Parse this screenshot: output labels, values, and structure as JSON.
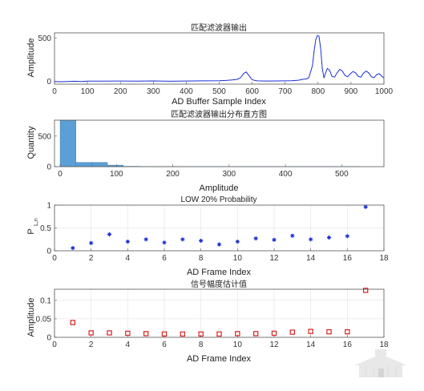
{
  "chart_data": [
    {
      "type": "line",
      "title": "匹配滤波器输出",
      "xlabel": "AD Buffer Sample Index",
      "ylabel": "Amplitude",
      "xlim": [
        0,
        1000
      ],
      "ylim": [
        -30,
        560
      ],
      "xticks": [
        "0",
        "100",
        "200",
        "300",
        "400",
        "500",
        "600",
        "700",
        "800",
        "900",
        "1000"
      ],
      "yticks": [
        "0",
        "500"
      ],
      "grid": false,
      "color": "#1a2ed6",
      "series": [
        {
          "x": [
            0,
            20,
            40,
            60,
            80,
            100,
            150,
            200,
            250,
            300,
            350,
            400,
            450,
            500,
            520,
            540,
            555,
            565,
            575,
            582,
            590,
            600,
            615,
            640,
            680,
            720,
            740,
            755,
            765,
            772,
            778,
            783,
            788,
            793,
            798,
            803,
            808,
            813,
            818,
            823,
            828,
            835,
            842,
            850,
            858,
            866,
            874,
            882,
            890,
            898,
            906,
            914,
            922,
            930,
            938,
            946,
            954,
            962,
            970,
            978,
            986,
            994,
            1000
          ],
          "y": [
            0,
            -2,
            0,
            3,
            0,
            5,
            4,
            6,
            4,
            7,
            3,
            6,
            8,
            10,
            12,
            18,
            25,
            45,
            95,
            110,
            70,
            20,
            8,
            6,
            7,
            10,
            15,
            25,
            30,
            45,
            120,
            180,
            350,
            480,
            530,
            520,
            380,
            150,
            40,
            100,
            150,
            130,
            60,
            50,
            100,
            140,
            120,
            70,
            55,
            90,
            115,
            100,
            60,
            50,
            95,
            120,
            100,
            55,
            45,
            80,
            90,
            60,
            40
          ]
        }
      ]
    },
    {
      "type": "bar",
      "title": "匹配滤波器输出分布直方图",
      "xlabel": "Amplitude",
      "ylabel": "Quantity",
      "xlim": [
        -10,
        575
      ],
      "ylim": [
        0,
        760
      ],
      "xticks": [
        "0",
        "100",
        "200",
        "300",
        "400",
        "500"
      ],
      "yticks": [
        "0",
        "500"
      ],
      "grid": false,
      "bar_color": "#5b9fd6",
      "bins": [
        {
          "x0": 0,
          "x1": 28,
          "value": 760
        },
        {
          "x0": 28,
          "x1": 56,
          "value": 70
        },
        {
          "x0": 56,
          "x1": 84,
          "value": 70
        },
        {
          "x0": 84,
          "x1": 112,
          "value": 25
        },
        {
          "x0": 112,
          "x1": 140,
          "value": 6
        },
        {
          "x0": 140,
          "x1": 168,
          "value": 4
        },
        {
          "x0": 168,
          "x1": 196,
          "value": 2
        },
        {
          "x0": 196,
          "x1": 224,
          "value": 2
        },
        {
          "x0": 224,
          "x1": 252,
          "value": 1
        },
        {
          "x0": 252,
          "x1": 280,
          "value": 1
        },
        {
          "x0": 280,
          "x1": 308,
          "value": 1
        },
        {
          "x0": 308,
          "x1": 336,
          "value": 1
        },
        {
          "x0": 336,
          "x1": 364,
          "value": 1
        },
        {
          "x0": 364,
          "x1": 392,
          "value": 1
        },
        {
          "x0": 392,
          "x1": 420,
          "value": 1
        },
        {
          "x0": 420,
          "x1": 448,
          "value": 1
        },
        {
          "x0": 448,
          "x1": 476,
          "value": 1
        },
        {
          "x0": 476,
          "x1": 504,
          "value": 1
        },
        {
          "x0": 504,
          "x1": 532,
          "value": 1
        }
      ]
    },
    {
      "type": "scatter",
      "title": "LOW 20% Probability",
      "xlabel": "AD Frame Index",
      "ylabel": "P",
      "ylabel_sub": "L,n",
      "xlim": [
        0,
        18
      ],
      "ylim": [
        0,
        1
      ],
      "xticks": [
        "0",
        "2",
        "4",
        "6",
        "8",
        "10",
        "12",
        "14",
        "16",
        "18"
      ],
      "yticks": [
        "0",
        "0.5",
        "1"
      ],
      "grid": true,
      "marker": "asterisk",
      "color": "#1a2ed6",
      "x": [
        1,
        2,
        3,
        4,
        5,
        6,
        7,
        8,
        9,
        10,
        11,
        12,
        13,
        14,
        15,
        16,
        17
      ],
      "y": [
        0.06,
        0.17,
        0.36,
        0.2,
        0.25,
        0.18,
        0.25,
        0.22,
        0.14,
        0.2,
        0.27,
        0.24,
        0.33,
        0.25,
        0.29,
        0.32,
        0.96
      ]
    },
    {
      "type": "scatter",
      "title": "信号幅度估计值",
      "xlabel": "AD Frame Index",
      "ylabel": "Amplitude",
      "xlim": [
        0,
        18
      ],
      "ylim": [
        0,
        0.13
      ],
      "xticks": [
        "0",
        "2",
        "4",
        "6",
        "8",
        "10",
        "12",
        "14",
        "16",
        "18"
      ],
      "yticks": [
        "0",
        "0.05",
        "0.1"
      ],
      "grid": true,
      "marker": "square",
      "color": "#d92020",
      "x": [
        1,
        2,
        3,
        4,
        5,
        6,
        7,
        8,
        9,
        10,
        11,
        12,
        13,
        14,
        15,
        16,
        17
      ],
      "y": [
        0.04,
        0.012,
        0.012,
        0.011,
        0.01,
        0.009,
        0.009,
        0.009,
        0.009,
        0.01,
        0.01,
        0.011,
        0.014,
        0.016,
        0.015,
        0.015,
        0.127
      ]
    }
  ]
}
